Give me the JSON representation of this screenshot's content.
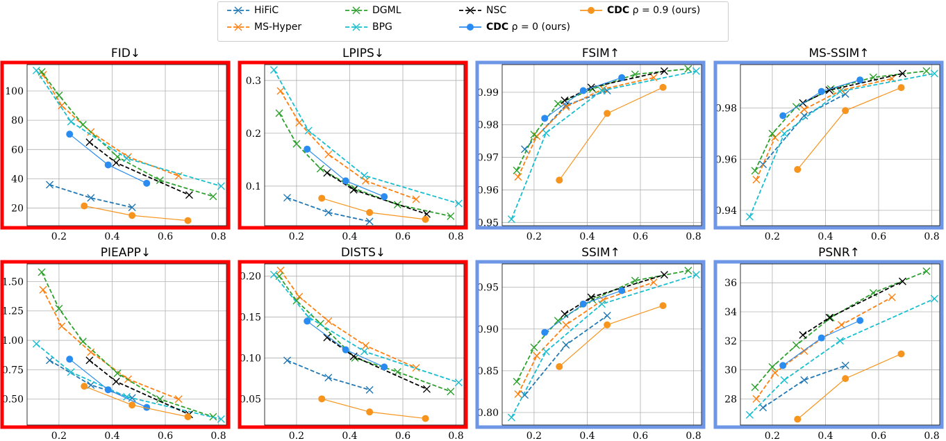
{
  "legend": {
    "placement": "top-center",
    "entries": [
      {
        "key": "hific",
        "name": "HiFiC"
      },
      {
        "key": "mshyper",
        "name": "MS-Hyper"
      },
      {
        "key": "dgml",
        "name": "DGML"
      },
      {
        "key": "bpg",
        "name": "BPG"
      },
      {
        "key": "nsc",
        "name": "NSC"
      },
      {
        "key": "cdc0",
        "name_bold": "CDC",
        "name_rest": " ρ = 0 (ours)"
      },
      {
        "key": "cdc9",
        "name_bold": "CDC",
        "name_rest": " ρ = 0.9 (ours)"
      }
    ]
  },
  "colors": {
    "hific": "#1f77b4",
    "mshyper": "#ff7f0e",
    "dgml": "#2ca02c",
    "bpg": "#17becf",
    "nsc": "#000000",
    "cdc0": "#2a8cf0",
    "cdc9": "#f7941d",
    "frame_lower_better": "#ff0000",
    "frame_higher_better": "#6d96e6",
    "grid": "#b0b0b0"
  },
  "styles": {
    "hific": "dashed-x",
    "mshyper": "dashed-x",
    "dgml": "dashed-x",
    "bpg": "dashed-x",
    "nsc": "dashed-x",
    "cdc0": "solid-dot",
    "cdc9": "solid-dot"
  },
  "chart_data": [
    {
      "type": "line",
      "title": "FID↓",
      "better": "lower",
      "xlim": [
        0.08,
        0.83
      ],
      "xticks": [
        "0.2",
        "0.4",
        "0.6",
        "0.8"
      ],
      "ylim": [
        8,
        118
      ],
      "yticks": [
        "20",
        "40",
        "60",
        "80",
        "100"
      ],
      "grid": true,
      "series": {
        "hific": [
          [
            0.165,
            36
          ],
          [
            0.32,
            27
          ],
          [
            0.475,
            20.5
          ]
        ],
        "mshyper": [
          [
            0.14,
            111
          ],
          [
            0.21,
            90
          ],
          [
            0.32,
            72
          ],
          [
            0.46,
            55
          ],
          [
            0.65,
            42
          ]
        ],
        "dgml": [
          [
            0.135,
            113
          ],
          [
            0.2,
            97
          ],
          [
            0.29,
            77
          ],
          [
            0.42,
            55
          ],
          [
            0.58,
            39
          ],
          [
            0.78,
            28
          ]
        ],
        "bpg": [
          [
            0.115,
            114
          ],
          [
            0.245,
            79
          ],
          [
            0.455,
            54
          ],
          [
            0.81,
            35
          ]
        ],
        "nsc": [
          [
            0.315,
            65
          ],
          [
            0.415,
            51
          ],
          [
            0.69,
            29
          ]
        ],
        "cdc0": [
          [
            0.24,
            70.5
          ],
          [
            0.385,
            49.5
          ],
          [
            0.53,
            37
          ]
        ],
        "cdc9": [
          [
            0.295,
            21.5
          ],
          [
            0.475,
            15
          ],
          [
            0.685,
            11.5
          ]
        ]
      }
    },
    {
      "type": "line",
      "title": "LPIPS↓",
      "better": "lower",
      "xlim": [
        0.08,
        0.83
      ],
      "xticks": [
        "0.2",
        "0.4",
        "0.6",
        "0.8"
      ],
      "ylim": [
        0.025,
        0.33
      ],
      "yticks": [
        "0.1",
        "0.2",
        "0.3"
      ],
      "grid": true,
      "series": {
        "hific": [
          [
            0.165,
            0.078
          ],
          [
            0.32,
            0.05
          ],
          [
            0.475,
            0.033
          ]
        ],
        "mshyper": [
          [
            0.14,
            0.28
          ],
          [
            0.21,
            0.22
          ],
          [
            0.32,
            0.16
          ],
          [
            0.46,
            0.11
          ],
          [
            0.65,
            0.075
          ]
        ],
        "dgml": [
          [
            0.135,
            0.238
          ],
          [
            0.2,
            0.18
          ],
          [
            0.29,
            0.133
          ],
          [
            0.42,
            0.095
          ],
          [
            0.58,
            0.065
          ],
          [
            0.78,
            0.043
          ]
        ],
        "bpg": [
          [
            0.115,
            0.32
          ],
          [
            0.245,
            0.205
          ],
          [
            0.455,
            0.12
          ],
          [
            0.81,
            0.067
          ]
        ],
        "nsc": [
          [
            0.315,
            0.125
          ],
          [
            0.415,
            0.093
          ],
          [
            0.69,
            0.047
          ]
        ],
        "cdc0": [
          [
            0.24,
            0.17
          ],
          [
            0.385,
            0.11
          ],
          [
            0.53,
            0.08
          ]
        ],
        "cdc9": [
          [
            0.295,
            0.077
          ],
          [
            0.475,
            0.05
          ],
          [
            0.685,
            0.037
          ]
        ]
      }
    },
    {
      "type": "line",
      "title": "FSIM↑",
      "better": "higher",
      "xlim": [
        0.08,
        0.83
      ],
      "xticks": [
        "0.2",
        "0.4",
        "0.6",
        "0.8"
      ],
      "ylim": [
        0.949,
        0.9985
      ],
      "yticks": [
        "0.95",
        "0.96",
        "0.97",
        "0.98",
        "0.99"
      ],
      "grid": true,
      "series": {
        "hific": [
          [
            0.165,
            0.9725
          ],
          [
            0.32,
            0.986
          ],
          [
            0.475,
            0.9905
          ]
        ],
        "mshyper": [
          [
            0.14,
            0.964
          ],
          [
            0.21,
            0.9765
          ],
          [
            0.32,
            0.9855
          ],
          [
            0.46,
            0.991
          ],
          [
            0.65,
            0.9945
          ]
        ],
        "dgml": [
          [
            0.135,
            0.966
          ],
          [
            0.2,
            0.977
          ],
          [
            0.29,
            0.9865
          ],
          [
            0.42,
            0.991
          ],
          [
            0.58,
            0.9955
          ],
          [
            0.78,
            0.9972
          ]
        ],
        "bpg": [
          [
            0.115,
            0.951
          ],
          [
            0.245,
            0.9775
          ],
          [
            0.455,
            0.9905
          ],
          [
            0.81,
            0.9965
          ]
        ],
        "nsc": [
          [
            0.315,
            0.9875
          ],
          [
            0.415,
            0.9915
          ],
          [
            0.69,
            0.9965
          ]
        ],
        "cdc0": [
          [
            0.24,
            0.982
          ],
          [
            0.385,
            0.9905
          ],
          [
            0.53,
            0.9945
          ]
        ],
        "cdc9": [
          [
            0.295,
            0.963
          ],
          [
            0.475,
            0.9835
          ],
          [
            0.685,
            0.9915
          ]
        ]
      }
    },
    {
      "type": "line",
      "title": "MS-SSIM↑",
      "better": "higher",
      "xlim": [
        0.08,
        0.83
      ],
      "xticks": [
        "0.2",
        "0.4",
        "0.6",
        "0.8"
      ],
      "ylim": [
        0.934,
        0.997
      ],
      "yticks": [
        "0.94",
        "0.96",
        "0.98"
      ],
      "grid": true,
      "series": {
        "hific": [
          [
            0.165,
            0.958
          ],
          [
            0.32,
            0.977
          ],
          [
            0.475,
            0.9855
          ]
        ],
        "mshyper": [
          [
            0.14,
            0.952
          ],
          [
            0.21,
            0.9685
          ],
          [
            0.32,
            0.9795
          ],
          [
            0.46,
            0.987
          ],
          [
            0.65,
            0.9915
          ]
        ],
        "dgml": [
          [
            0.135,
            0.9555
          ],
          [
            0.2,
            0.97
          ],
          [
            0.29,
            0.9805
          ],
          [
            0.42,
            0.9875
          ],
          [
            0.58,
            0.992
          ],
          [
            0.78,
            0.9945
          ]
        ],
        "bpg": [
          [
            0.115,
            0.9375
          ],
          [
            0.245,
            0.97
          ],
          [
            0.455,
            0.9865
          ],
          [
            0.81,
            0.9935
          ]
        ],
        "nsc": [
          [
            0.315,
            0.982
          ],
          [
            0.415,
            0.987
          ],
          [
            0.69,
            0.9935
          ]
        ],
        "cdc0": [
          [
            0.24,
            0.977
          ],
          [
            0.385,
            0.9865
          ],
          [
            0.53,
            0.991
          ]
        ],
        "cdc9": [
          [
            0.295,
            0.956
          ],
          [
            0.475,
            0.979
          ],
          [
            0.685,
            0.988
          ]
        ]
      }
    },
    {
      "type": "line",
      "title": "PIEAPP↓",
      "better": "lower",
      "xlim": [
        0.08,
        0.83
      ],
      "xticks": [
        "0.2",
        "0.4",
        "0.6",
        "0.8"
      ],
      "ylim": [
        0.28,
        1.65
      ],
      "yticks": [
        "0.50",
        "0.75",
        "1.00",
        "1.25",
        "1.50"
      ],
      "grid": true,
      "series": {
        "hific": [
          [
            0.165,
            0.83
          ],
          [
            0.32,
            0.62
          ],
          [
            0.475,
            0.51
          ]
        ],
        "mshyper": [
          [
            0.14,
            1.43
          ],
          [
            0.21,
            1.12
          ],
          [
            0.32,
            0.9
          ],
          [
            0.46,
            0.67
          ],
          [
            0.65,
            0.5
          ]
        ],
        "dgml": [
          [
            0.135,
            1.58
          ],
          [
            0.2,
            1.27
          ],
          [
            0.29,
            0.99
          ],
          [
            0.42,
            0.72
          ],
          [
            0.58,
            0.5
          ],
          [
            0.78,
            0.35
          ]
        ],
        "bpg": [
          [
            0.115,
            0.97
          ],
          [
            0.245,
            0.73
          ],
          [
            0.455,
            0.52
          ],
          [
            0.81,
            0.33
          ]
        ],
        "nsc": [
          [
            0.315,
            0.83
          ],
          [
            0.415,
            0.65
          ],
          [
            0.69,
            0.37
          ]
        ],
        "cdc0": [
          [
            0.24,
            0.84
          ],
          [
            0.385,
            0.58
          ],
          [
            0.53,
            0.43
          ]
        ],
        "cdc9": [
          [
            0.295,
            0.61
          ],
          [
            0.475,
            0.45
          ],
          [
            0.685,
            0.35
          ]
        ]
      }
    },
    {
      "type": "line",
      "title": "DISTS↓",
      "better": "lower",
      "xlim": [
        0.08,
        0.83
      ],
      "xticks": [
        "0.2",
        "0.4",
        "0.6",
        "0.8"
      ],
      "ylim": [
        0.018,
        0.215
      ],
      "yticks": [
        "0.05",
        "0.10",
        "0.15",
        "0.20"
      ],
      "grid": true,
      "series": {
        "hific": [
          [
            0.165,
            0.097
          ],
          [
            0.32,
            0.076
          ],
          [
            0.475,
            0.061
          ]
        ],
        "mshyper": [
          [
            0.14,
            0.207
          ],
          [
            0.21,
            0.175
          ],
          [
            0.32,
            0.145
          ],
          [
            0.46,
            0.115
          ],
          [
            0.65,
            0.088
          ]
        ],
        "dgml": [
          [
            0.135,
            0.2
          ],
          [
            0.2,
            0.17
          ],
          [
            0.29,
            0.142
          ],
          [
            0.42,
            0.1
          ],
          [
            0.58,
            0.083
          ],
          [
            0.78,
            0.059
          ]
        ],
        "bpg": [
          [
            0.115,
            0.202
          ],
          [
            0.245,
            0.15
          ],
          [
            0.455,
            0.108
          ],
          [
            0.81,
            0.07
          ]
        ],
        "nsc": [
          [
            0.315,
            0.125
          ],
          [
            0.415,
            0.102
          ],
          [
            0.69,
            0.062
          ]
        ],
        "cdc0": [
          [
            0.24,
            0.145
          ],
          [
            0.385,
            0.11
          ],
          [
            0.53,
            0.089
          ]
        ],
        "cdc9": [
          [
            0.295,
            0.05
          ],
          [
            0.475,
            0.034
          ],
          [
            0.685,
            0.026
          ]
        ]
      }
    },
    {
      "type": "line",
      "title": "SSIM↑",
      "better": "higher",
      "xlim": [
        0.08,
        0.83
      ],
      "xticks": [
        "0.2",
        "0.4",
        "0.6",
        "0.8"
      ],
      "ylim": [
        0.785,
        0.978
      ],
      "yticks": [
        "0.80",
        "0.85",
        "0.90",
        "0.95"
      ],
      "grid": true,
      "series": {
        "hific": [
          [
            0.165,
            0.821
          ],
          [
            0.32,
            0.881
          ],
          [
            0.475,
            0.916
          ]
        ],
        "mshyper": [
          [
            0.14,
            0.822
          ],
          [
            0.21,
            0.868
          ],
          [
            0.32,
            0.905
          ],
          [
            0.46,
            0.935
          ],
          [
            0.65,
            0.956
          ]
        ],
        "dgml": [
          [
            0.135,
            0.837
          ],
          [
            0.2,
            0.878
          ],
          [
            0.29,
            0.91
          ],
          [
            0.42,
            0.935
          ],
          [
            0.58,
            0.958
          ],
          [
            0.78,
            0.97
          ]
        ],
        "bpg": [
          [
            0.115,
            0.794
          ],
          [
            0.245,
            0.873
          ],
          [
            0.455,
            0.93
          ],
          [
            0.81,
            0.965
          ]
        ],
        "nsc": [
          [
            0.315,
            0.918
          ],
          [
            0.415,
            0.938
          ],
          [
            0.69,
            0.965
          ]
        ],
        "cdc0": [
          [
            0.24,
            0.896
          ],
          [
            0.385,
            0.93
          ],
          [
            0.53,
            0.946
          ]
        ],
        "cdc9": [
          [
            0.295,
            0.855
          ],
          [
            0.475,
            0.905
          ],
          [
            0.685,
            0.928
          ]
        ]
      }
    },
    {
      "type": "line",
      "title": "PSNR↑",
      "better": "higher",
      "xlim": [
        0.08,
        0.83
      ],
      "xticks": [
        "0.2",
        "0.4",
        "0.6",
        "0.8"
      ],
      "ylim": [
        26.2,
        37.3
      ],
      "yticks": [
        "28",
        "30",
        "32",
        "34",
        "36"
      ],
      "grid": true,
      "series": {
        "hific": [
          [
            0.165,
            27.4
          ],
          [
            0.32,
            29.3
          ],
          [
            0.475,
            30.3
          ]
        ],
        "mshyper": [
          [
            0.14,
            28.0
          ],
          [
            0.21,
            29.8
          ],
          [
            0.32,
            31.3
          ],
          [
            0.46,
            33.1
          ],
          [
            0.65,
            35.0
          ]
        ],
        "dgml": [
          [
            0.135,
            28.8
          ],
          [
            0.2,
            30.2
          ],
          [
            0.29,
            31.7
          ],
          [
            0.42,
            33.6
          ],
          [
            0.58,
            35.3
          ],
          [
            0.78,
            36.8
          ]
        ],
        "bpg": [
          [
            0.115,
            26.9
          ],
          [
            0.245,
            29.3
          ],
          [
            0.455,
            32.0
          ],
          [
            0.81,
            34.9
          ]
        ],
        "nsc": [
          [
            0.315,
            32.4
          ],
          [
            0.415,
            33.6
          ],
          [
            0.69,
            36.1
          ]
        ],
        "cdc0": [
          [
            0.24,
            30.3
          ],
          [
            0.385,
            32.2
          ],
          [
            0.53,
            33.4
          ]
        ],
        "cdc9": [
          [
            0.295,
            26.6
          ],
          [
            0.475,
            29.4
          ],
          [
            0.685,
            31.1
          ]
        ]
      }
    }
  ]
}
